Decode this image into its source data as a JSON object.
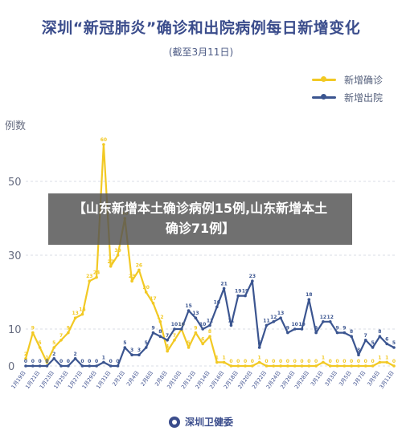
{
  "header": {
    "title": "深圳“新冠肺炎”确诊和出院病例每日新增变化",
    "subtitle": "(截至3月11日)"
  },
  "banner": {
    "text": "【山东新增本土确诊病例15例,山东新增本土确诊71例】"
  },
  "footer": {
    "label": "深圳卫健委"
  },
  "legend": [
    {
      "name": "新增确诊",
      "color": "#f2c924"
    },
    {
      "name": "新增出院",
      "color": "#3b5590"
    }
  ],
  "chart_data": {
    "type": "line",
    "ylabel": "例数",
    "yticks": [
      0,
      10,
      30,
      50
    ],
    "ylim": [
      0,
      70
    ],
    "categories": [
      "1月19日",
      "1月20日",
      "1月21日",
      "1月22日",
      "1月23日",
      "1月24日",
      "1月25日",
      "1月26日",
      "1月27日",
      "1月28日",
      "1月29日",
      "1月30日",
      "1月31日",
      "2月1日",
      "2月2日",
      "2月3日",
      "2月4日",
      "2月5日",
      "2月6日",
      "2月7日",
      "2月8日",
      "2月9日",
      "2月10日",
      "2月11日",
      "2月12日",
      "2月13日",
      "2月14日",
      "2月15日",
      "2月16日",
      "2月17日",
      "2月18日",
      "2月19日",
      "2月20日",
      "2月21日",
      "2月22日",
      "2月23日",
      "2月24日",
      "2月25日",
      "2月26日",
      "2月27日",
      "2月28日",
      "2月29日",
      "3月1日",
      "3月2日",
      "3月3日",
      "3月4日",
      "3月5日",
      "3月6日",
      "3月7日",
      "3月8日",
      "3月9日",
      "3月10日",
      "3月11日"
    ],
    "xtick_labels": [
      "1月19日",
      "1月21日",
      "1月23日",
      "1月25日",
      "1月27日",
      "1月29日",
      "1月31日",
      "2月2日",
      "2月4日",
      "2月6日",
      "2月8日",
      "2月10日",
      "2月12日",
      "2月14日",
      "2月16日",
      "2月18日",
      "2月20日",
      "2月22日",
      "2月24日",
      "2月26日",
      "2月28日",
      "3月1日",
      "3月3日",
      "3月5日",
      "3月7日",
      "3月9日",
      "3月11日"
    ],
    "series": [
      {
        "name": "新增确诊",
        "color": "#f2c924",
        "values": [
          2,
          9,
          5,
          1,
          5,
          7,
          9,
          13,
          14,
          23,
          24,
          60,
          27,
          30,
          40,
          23,
          26,
          20,
          17,
          12,
          4,
          7,
          10,
          5,
          9,
          6,
          8,
          1,
          1,
          0,
          0,
          0,
          0,
          1,
          0,
          0,
          0,
          0,
          0,
          0,
          0,
          0,
          1,
          0,
          0,
          0,
          0,
          0,
          0,
          0,
          1,
          1,
          0
        ],
        "value_labels": [
          2,
          9,
          5,
          1,
          5,
          7,
          9,
          13,
          14,
          23,
          24,
          60,
          27,
          30,
          40,
          23,
          26,
          20,
          17,
          12,
          4,
          7,
          10,
          5,
          9,
          6,
          8,
          1,
          1,
          0,
          0,
          0,
          0,
          1,
          0,
          0,
          0,
          0,
          0,
          0,
          0,
          0,
          1,
          0,
          0,
          0,
          0,
          0,
          0,
          0,
          1,
          1,
          0
        ]
      },
      {
        "name": "新增出院",
        "color": "#3b5590",
        "values": [
          0,
          0,
          0,
          0,
          2,
          0,
          0,
          2,
          0,
          0,
          0,
          1,
          0,
          0,
          5,
          3,
          3,
          5,
          9,
          8,
          7,
          10,
          10,
          15,
          13,
          10,
          11,
          16,
          21,
          11,
          19,
          19,
          23,
          5,
          11,
          12,
          13,
          9,
          10,
          10,
          18,
          9,
          12,
          12,
          9,
          9,
          8,
          3,
          7,
          5,
          8,
          6,
          5
        ],
        "value_labels": [
          0,
          0,
          0,
          0,
          2,
          0,
          0,
          2,
          0,
          0,
          0,
          1,
          0,
          0,
          5,
          3,
          3,
          5,
          9,
          8,
          7,
          10,
          10,
          15,
          13,
          10,
          11,
          16,
          21,
          11,
          19,
          19,
          23,
          5,
          11,
          12,
          13,
          9,
          10,
          10,
          18,
          9,
          12,
          12,
          9,
          9,
          8,
          3,
          7,
          5,
          8,
          6,
          5
        ]
      }
    ]
  }
}
